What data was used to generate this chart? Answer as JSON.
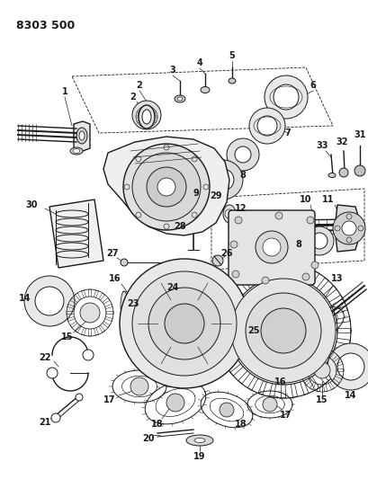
{
  "title": "8303 500",
  "bg_color": "#ffffff",
  "line_color": "#1a1a1a",
  "label_color": "#1a1a1a",
  "title_fontsize": 9,
  "label_fontsize": 7,
  "fig_width": 4.1,
  "fig_height": 5.33,
  "dpi": 100
}
